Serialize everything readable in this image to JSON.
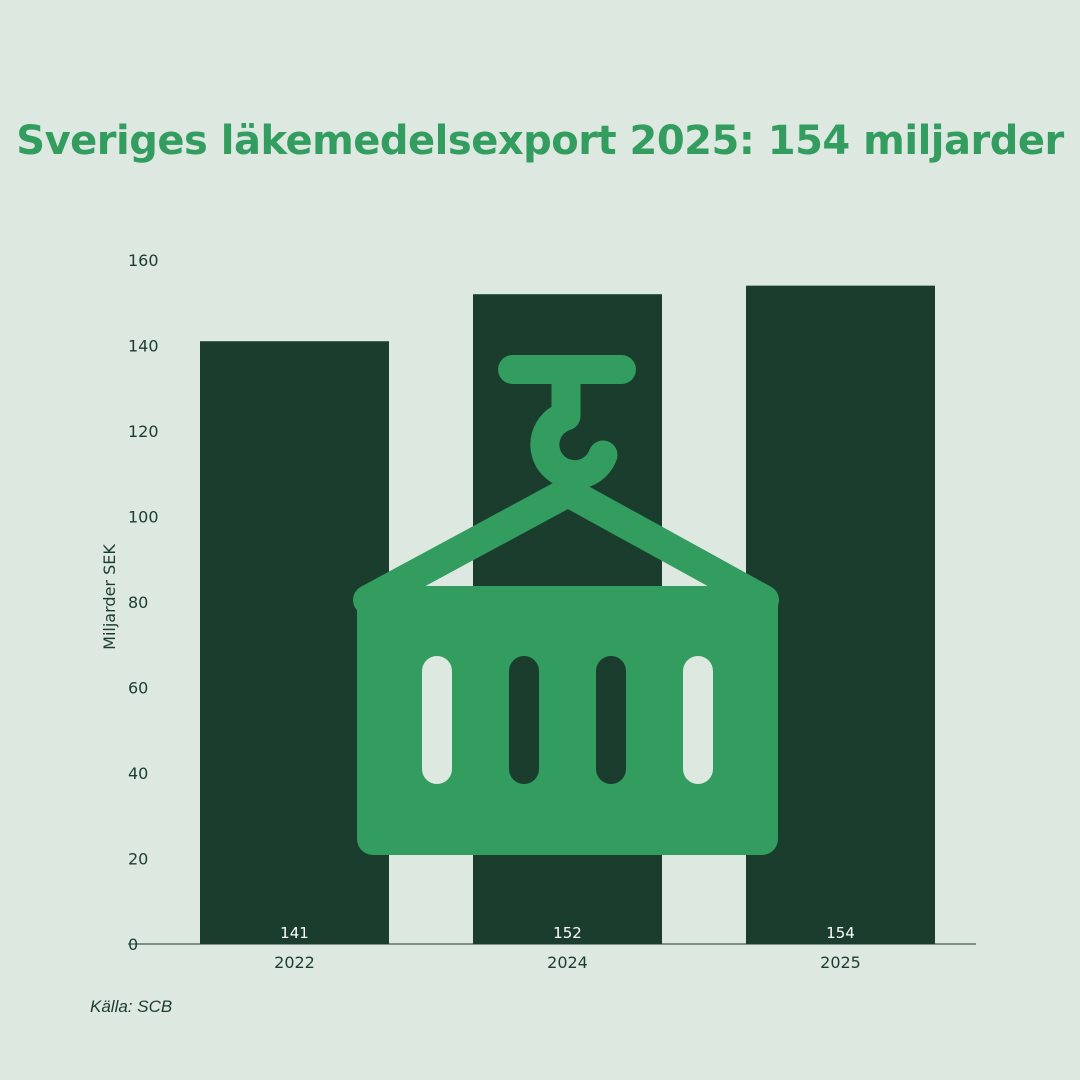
{
  "chart_data": {
    "type": "bar",
    "title": "Sveriges läkemedelsexport 2025: 154 miljarder",
    "xlabel": "",
    "ylabel": "Miljarder SEK",
    "categories": [
      "2022",
      "2024",
      "2025"
    ],
    "values": [
      141,
      152,
      154
    ],
    "data_labels": [
      "141",
      "152",
      "154"
    ],
    "ylim": [
      0,
      160
    ],
    "yticks": [
      0,
      20,
      40,
      60,
      80,
      100,
      120,
      140,
      160
    ],
    "grid": false,
    "legend": "none",
    "colors": {
      "background": "#dde8e1",
      "bar": "#1a3d2e",
      "title": "#339c5f",
      "icon": "#339c5f",
      "text": "#1b3d2f"
    }
  },
  "source": "Källa: SCB",
  "icon": "shipping-container-crane-icon"
}
